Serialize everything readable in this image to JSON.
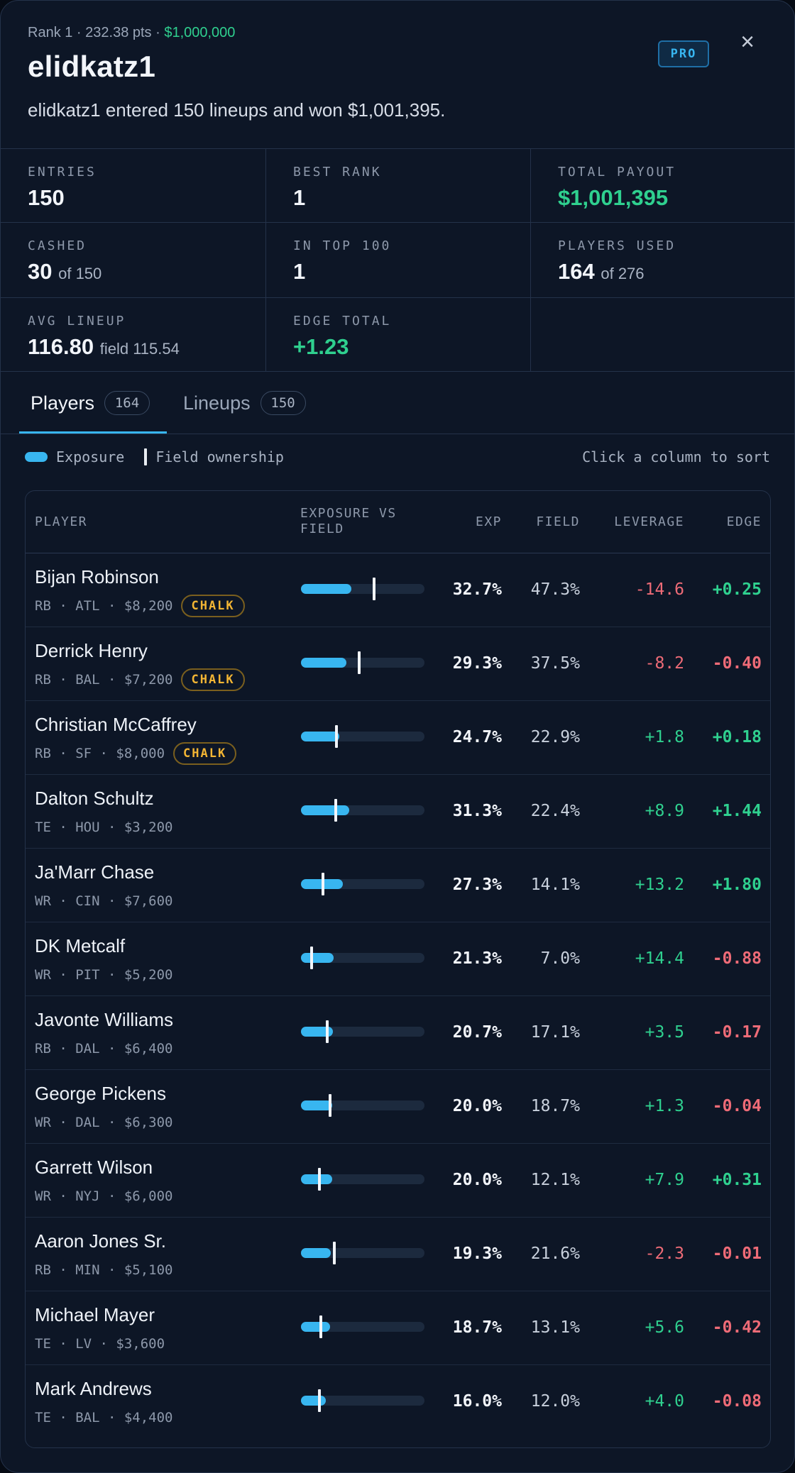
{
  "header": {
    "meta_prefix": "Rank 1 · 232.38 pts · ",
    "meta_prize": "$1,000,000",
    "username": "elidkatz1",
    "summary": "elidkatz1 entered 150 lineups and won $1,001,395.",
    "badge": "PRO",
    "close_glyph": "×"
  },
  "stats": [
    {
      "label": "ENTRIES",
      "value": "150",
      "sub": "",
      "color": ""
    },
    {
      "label": "BEST RANK",
      "value": "1",
      "sub": "",
      "color": ""
    },
    {
      "label": "TOTAL PAYOUT",
      "value": "$1,001,395",
      "sub": "",
      "color": "green"
    },
    {
      "label": "CASHED",
      "value": "30",
      "sub": "of 150",
      "color": ""
    },
    {
      "label": "IN TOP 100",
      "value": "1",
      "sub": "",
      "color": ""
    },
    {
      "label": "PLAYERS USED",
      "value": "164",
      "sub": "of 276",
      "color": ""
    },
    {
      "label": "AVG LINEUP",
      "value": "116.80",
      "sub": "field 115.54",
      "color": ""
    },
    {
      "label": "EDGE TOTAL",
      "value": "+1.23",
      "sub": "",
      "color": "green"
    }
  ],
  "tabs": [
    {
      "label": "Players",
      "count": "164",
      "active": true
    },
    {
      "label": "Lineups",
      "count": "150",
      "active": false
    }
  ],
  "legend": {
    "exposure": "Exposure",
    "field": "Field ownership",
    "sort_hint": "Click a column to sort"
  },
  "columns": {
    "player": "PLAYER",
    "bar_line1": "EXPOSURE VS",
    "bar_line2": "FIELD",
    "exp": "EXP",
    "field": "FIELD",
    "leverage": "LEVERAGE",
    "edge": "EDGE"
  },
  "colors": {
    "accent": "#38b6f0",
    "positive": "#2fd08f",
    "negative": "#ee6b77",
    "chalk": "#f2b534"
  },
  "players": [
    {
      "name": "Bijan Robinson",
      "info": "RB · ATL · $8,200",
      "chalk": "CHALK",
      "exp": "32.7%",
      "field": "47.3%",
      "leverage": "-14.6",
      "edge": "+0.25",
      "exp_pct": 32.7,
      "field_pct": 47.3
    },
    {
      "name": "Derrick Henry",
      "info": "RB · BAL · $7,200",
      "chalk": "CHALK",
      "exp": "29.3%",
      "field": "37.5%",
      "leverage": "-8.2",
      "edge": "-0.40",
      "exp_pct": 29.3,
      "field_pct": 37.5
    },
    {
      "name": "Christian McCaffrey",
      "info": "RB · SF · $8,000",
      "chalk": "CHALK",
      "exp": "24.7%",
      "field": "22.9%",
      "leverage": "+1.8",
      "edge": "+0.18",
      "exp_pct": 24.7,
      "field_pct": 22.9
    },
    {
      "name": "Dalton Schultz",
      "info": "TE · HOU · $3,200",
      "chalk": "",
      "exp": "31.3%",
      "field": "22.4%",
      "leverage": "+8.9",
      "edge": "+1.44",
      "exp_pct": 31.3,
      "field_pct": 22.4
    },
    {
      "name": "Ja'Marr Chase",
      "info": "WR · CIN · $7,600",
      "chalk": "",
      "exp": "27.3%",
      "field": "14.1%",
      "leverage": "+13.2",
      "edge": "+1.80",
      "exp_pct": 27.3,
      "field_pct": 14.1
    },
    {
      "name": "DK Metcalf",
      "info": "WR · PIT · $5,200",
      "chalk": "",
      "exp": "21.3%",
      "field": "7.0%",
      "leverage": "+14.4",
      "edge": "-0.88",
      "exp_pct": 21.3,
      "field_pct": 7.0
    },
    {
      "name": "Javonte Williams",
      "info": "RB · DAL · $6,400",
      "chalk": "",
      "exp": "20.7%",
      "field": "17.1%",
      "leverage": "+3.5",
      "edge": "-0.17",
      "exp_pct": 20.7,
      "field_pct": 17.1
    },
    {
      "name": "George Pickens",
      "info": "WR · DAL · $6,300",
      "chalk": "",
      "exp": "20.0%",
      "field": "18.7%",
      "leverage": "+1.3",
      "edge": "-0.04",
      "exp_pct": 20.0,
      "field_pct": 18.7
    },
    {
      "name": "Garrett Wilson",
      "info": "WR · NYJ · $6,000",
      "chalk": "",
      "exp": "20.0%",
      "field": "12.1%",
      "leverage": "+7.9",
      "edge": "+0.31",
      "exp_pct": 20.0,
      "field_pct": 12.1
    },
    {
      "name": "Aaron Jones Sr.",
      "info": "RB · MIN · $5,100",
      "chalk": "",
      "exp": "19.3%",
      "field": "21.6%",
      "leverage": "-2.3",
      "edge": "-0.01",
      "exp_pct": 19.3,
      "field_pct": 21.6
    },
    {
      "name": "Michael Mayer",
      "info": "TE · LV · $3,600",
      "chalk": "",
      "exp": "18.7%",
      "field": "13.1%",
      "leverage": "+5.6",
      "edge": "-0.42",
      "exp_pct": 18.7,
      "field_pct": 13.1
    },
    {
      "name": "Mark Andrews",
      "info": "TE · BAL · $4,400",
      "chalk": "",
      "exp": "16.0%",
      "field": "12.0%",
      "leverage": "+4.0",
      "edge": "-0.08",
      "exp_pct": 16.0,
      "field_pct": 12.0
    }
  ]
}
